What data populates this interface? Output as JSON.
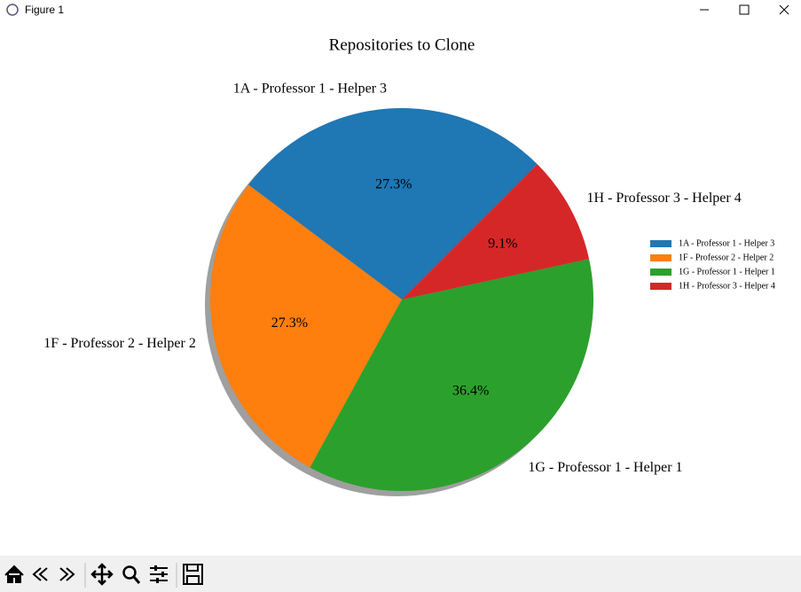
{
  "window": {
    "title": "Figure 1"
  },
  "chart_data": {
    "type": "pie",
    "title": "Repositories to Clone",
    "categories": [
      "1A - Professor 1 - Helper 3",
      "1F - Professor 2 - Helper 2",
      "1G - Professor 1 - Helper 1",
      "1H - Professor 3 - Helper 4"
    ],
    "values": [
      27.3,
      27.3,
      36.4,
      9.1
    ],
    "value_labels": [
      "27.3%",
      "27.3%",
      "36.4%",
      "9.1%"
    ],
    "colors": [
      "#1f77b4",
      "#ff7f0e",
      "#2ca02c",
      "#d62728"
    ],
    "startangle": 45,
    "shadow": true,
    "legend": "center right"
  }
}
